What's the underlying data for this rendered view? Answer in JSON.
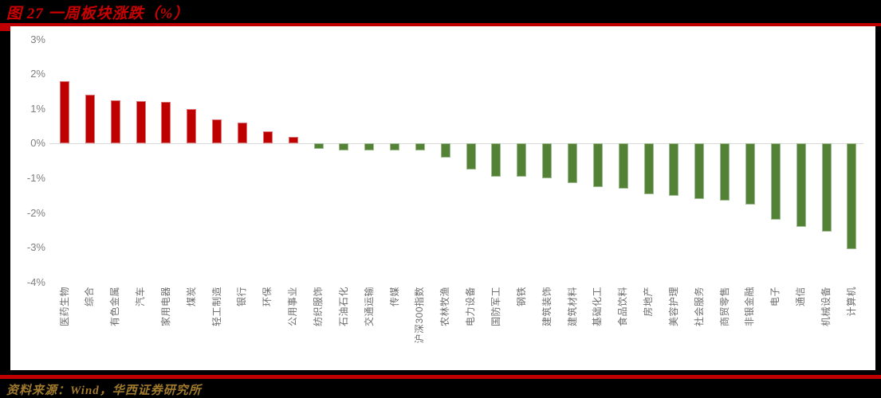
{
  "header": {
    "title": "图 27 一周板块涨跌（%）"
  },
  "footer": {
    "source": "资料来源：Wind，华西证券研究所"
  },
  "colors": {
    "background": "#000000",
    "panel": "#FFFFFF",
    "title_red": "#CC0000",
    "rule_red": "#C00000",
    "positive_bar": "#C00000",
    "negative_bar": "#538135",
    "axis_text": "#7F7F7F",
    "category_text": "#6E6E6E",
    "axis_line": "#D9D9D9",
    "footer_gold": "#A07A2C"
  },
  "chart_data": {
    "type": "bar",
    "title": "一周板块涨跌（%）",
    "xlabel": "",
    "ylabel": "",
    "ylim": [
      -4,
      3
    ],
    "grid": false,
    "legend": false,
    "y_tick_values": [
      3,
      2,
      1,
      0,
      -1,
      -2,
      -3,
      -4
    ],
    "y_tick_labels": [
      "3%",
      "2%",
      "1%",
      "0%",
      "-1%",
      "-2%",
      "-3%",
      "-4%"
    ],
    "categories": [
      "医药生物",
      "综合",
      "有色金属",
      "汽车",
      "家用电器",
      "煤炭",
      "轻工制造",
      "银行",
      "环保",
      "公用事业",
      "纺织服饰",
      "石油石化",
      "交通运输",
      "传媒",
      "沪深300指数",
      "农林牧渔",
      "电力设备",
      "国防军工",
      "钢铁",
      "建筑装饰",
      "建筑材料",
      "基础化工",
      "食品饮料",
      "房地产",
      "美容护理",
      "社会服务",
      "商贸零售",
      "非银金融",
      "电子",
      "通信",
      "机械设备",
      "计算机"
    ],
    "values": [
      1.8,
      1.4,
      1.25,
      1.22,
      1.2,
      1.0,
      0.7,
      0.6,
      0.35,
      0.2,
      -0.15,
      -0.2,
      -0.2,
      -0.2,
      -0.2,
      -0.4,
      -0.75,
      -0.95,
      -0.95,
      -1.0,
      -1.15,
      -1.25,
      -1.3,
      -1.45,
      -1.5,
      -1.6,
      -1.65,
      -1.75,
      -2.2,
      -2.4,
      -2.55,
      -3.05
    ]
  }
}
